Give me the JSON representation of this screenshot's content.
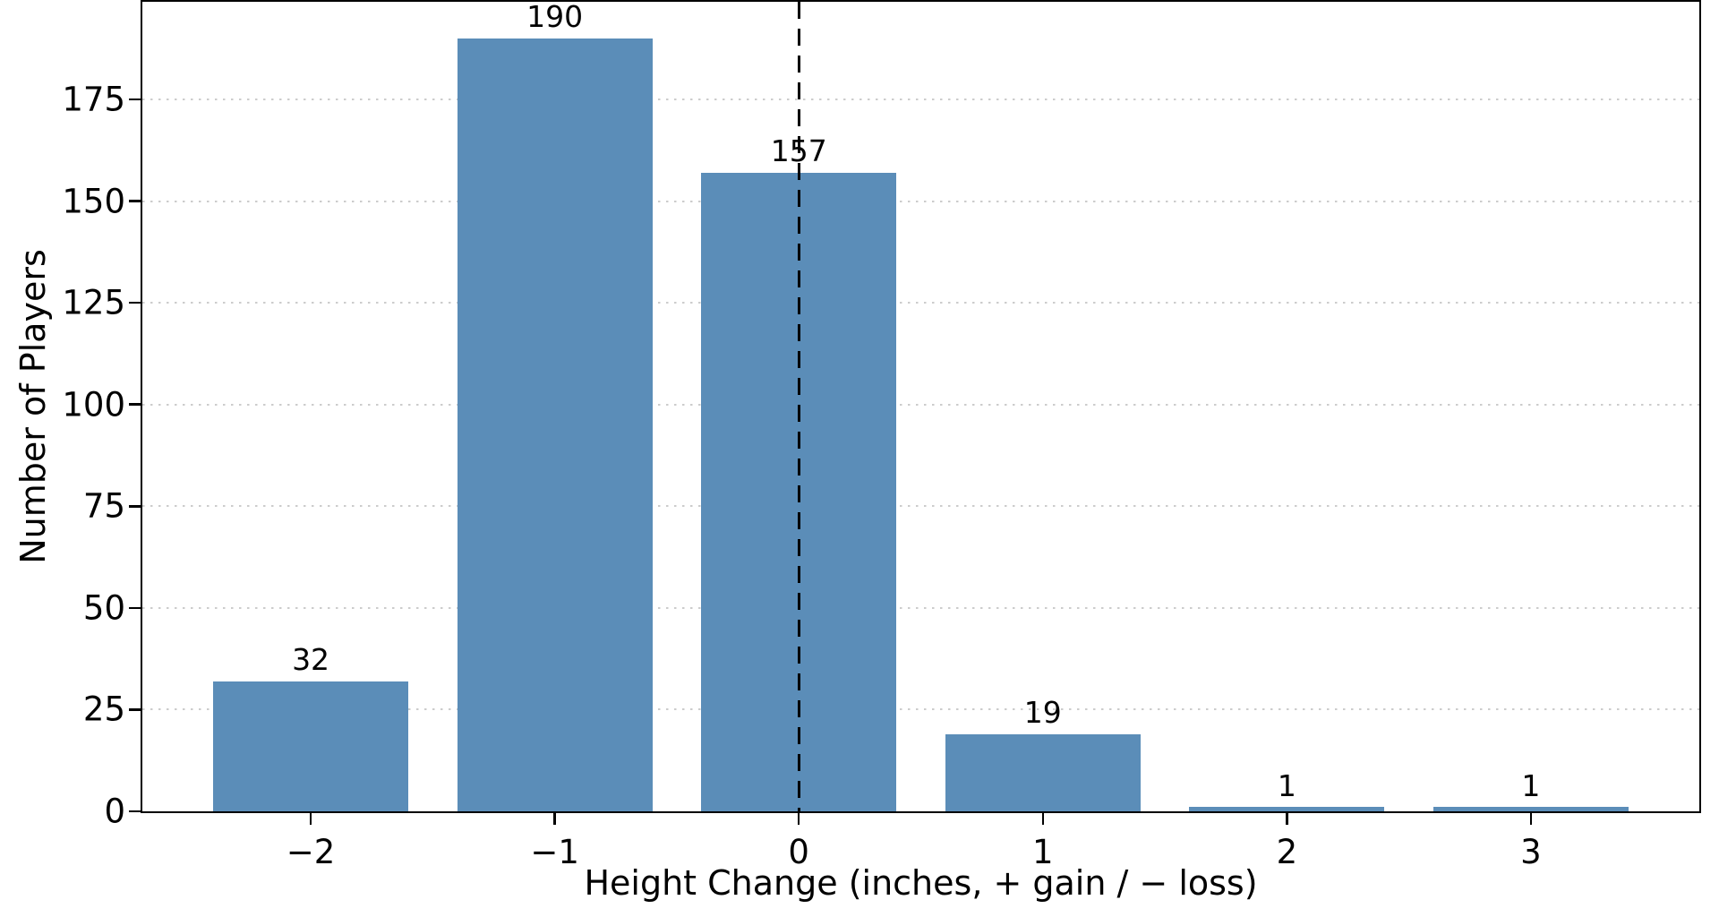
{
  "chart_data": {
    "type": "bar",
    "xlabel": "Height Change (inches, + gain / − loss)",
    "ylabel": "Number of Players",
    "categories": [
      "−2",
      "−1",
      "0",
      "1",
      "2",
      "3"
    ],
    "x": [
      -2,
      -1,
      0,
      1,
      2,
      3
    ],
    "values": [
      32,
      190,
      157,
      19,
      1,
      1
    ],
    "bar_labels": [
      "32",
      "190",
      "157",
      "19",
      "1",
      "1"
    ],
    "yticks": [
      0,
      25,
      50,
      75,
      100,
      125,
      150,
      175
    ],
    "ytick_labels": [
      "0",
      "25",
      "50",
      "75",
      "100",
      "125",
      "150",
      "175"
    ],
    "xlim": [
      -2.69,
      3.69
    ],
    "ylim": [
      0,
      199
    ],
    "bar_width": 0.8,
    "bar_color": "#5b8db8",
    "grid": {
      "axis": "y",
      "style": "dotted",
      "color": "#cccccc",
      "on": true
    },
    "reference_line": {
      "x": 0,
      "style": "dashed",
      "color": "#000000"
    },
    "legend": {
      "visible": false
    },
    "spine_color": "#000000"
  }
}
